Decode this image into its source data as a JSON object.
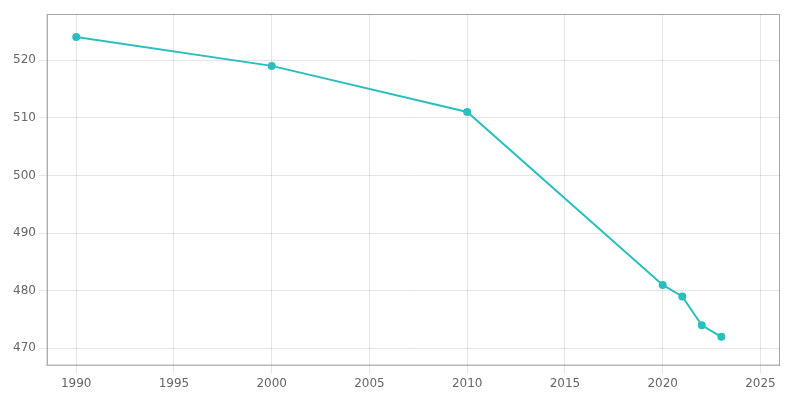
{
  "chart_data": {
    "type": "line",
    "x": [
      1990,
      2000,
      2010,
      2020,
      2021,
      2022,
      2023
    ],
    "values": [
      524,
      519,
      511,
      481,
      479,
      474,
      472
    ],
    "color": "#2abfbf",
    "marker": "circle",
    "xlim": [
      1988.5,
      2026
    ],
    "ylim": [
      467,
      528
    ],
    "xticks": [
      1990,
      1995,
      2000,
      2005,
      2010,
      2015,
      2020,
      2025
    ],
    "yticks": [
      470,
      480,
      490,
      500,
      510,
      520
    ],
    "grid": true
  }
}
